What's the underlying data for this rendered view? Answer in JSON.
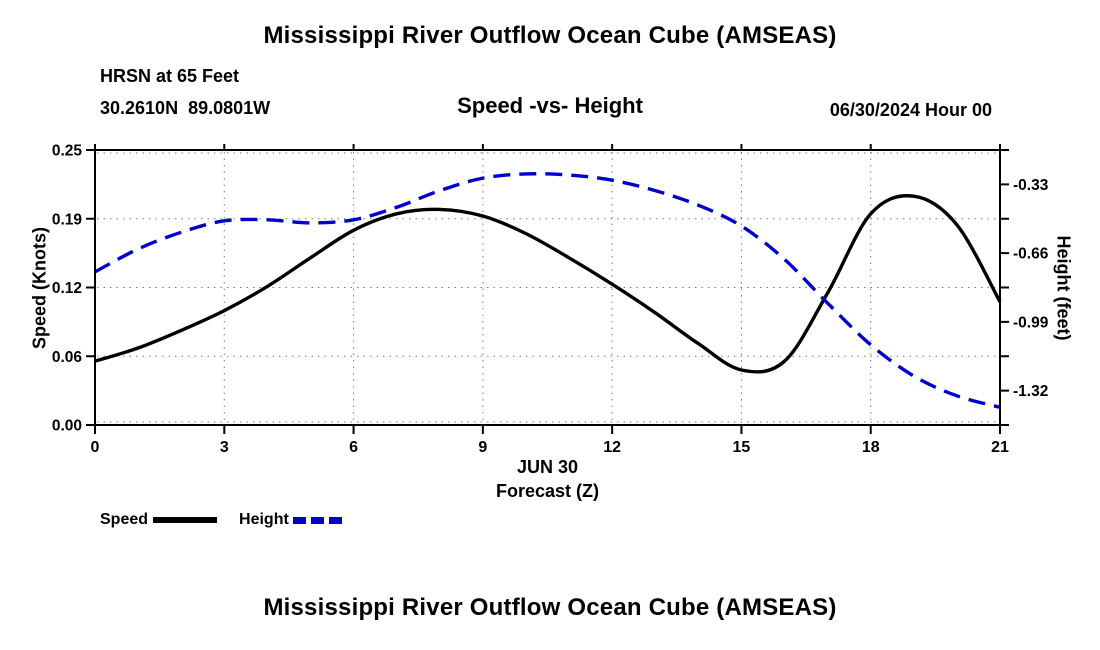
{
  "page": {
    "background": "#ffffff"
  },
  "titles": {
    "top": "Mississippi River Outflow Ocean Cube (AMSEAS)",
    "bottom": "Mississippi River Outflow Ocean Cube (AMSEAS)"
  },
  "header": {
    "station_line": "HRSN at 65 Feet",
    "location_line": "30.2610N  89.0801W",
    "plot_title": "Speed -vs- Height",
    "datetime_label": "06/30/2024 Hour 00"
  },
  "legend": {
    "position": "bottom-left",
    "items": [
      {
        "label": "Speed",
        "color": "#000000",
        "style": "solid"
      },
      {
        "label": "Height",
        "color": "#0000cc",
        "style": "dashed"
      }
    ]
  },
  "colors": {
    "speed_line": "#000000",
    "height_line": "#0000cc",
    "frame": "#000000",
    "grid_dots": "#444444",
    "text": "#000000"
  },
  "chart_data": {
    "type": "line",
    "title": "Speed -vs- Height",
    "grid": "dotted",
    "legend_position": "bottom-left",
    "x_axis": {
      "label_line1": "JUN 30",
      "label_line2": "Forecast (Z)",
      "tick_labels": [
        "0",
        "3",
        "6",
        "9",
        "12",
        "15",
        "18",
        "21"
      ],
      "tick_values": [
        0,
        3,
        6,
        9,
        12,
        15,
        18,
        21
      ],
      "range": [
        0,
        21
      ]
    },
    "left_axis": {
      "label": "Speed (Knots)",
      "tick_labels": [
        "0.25",
        "0.19",
        "0.12",
        "0.06",
        "0.00"
      ],
      "tick_values": [
        0.25,
        0.1875,
        0.125,
        0.0625,
        0
      ],
      "range": [
        0,
        0.25
      ]
    },
    "right_axis": {
      "label": "Height (feet)",
      "tick_labels": [
        "-0.33",
        "-0.66",
        "-0.99",
        "-1.32"
      ],
      "tick_values": [
        -0.33,
        -0.66,
        -0.99,
        -1.32
      ],
      "range": [
        -1.485,
        -0.165
      ]
    },
    "x": [
      0,
      1,
      2,
      3,
      4,
      5,
      6,
      7,
      8,
      9,
      10,
      11,
      12,
      13,
      14,
      15,
      16,
      17,
      18,
      19,
      20,
      21
    ],
    "series": [
      {
        "name": "Speed",
        "axis": "left",
        "color": "#000000",
        "style": "solid",
        "values": [
          0.058,
          0.07,
          0.086,
          0.104,
          0.126,
          0.152,
          0.177,
          0.192,
          0.196,
          0.19,
          0.174,
          0.152,
          0.128,
          0.102,
          0.074,
          0.05,
          0.058,
          0.12,
          0.192,
          0.208,
          0.182,
          0.112
        ]
      },
      {
        "name": "Height",
        "axis": "right",
        "color": "#0000cc",
        "style": "dashed",
        "values": [
          -0.75,
          -0.64,
          -0.56,
          -0.505,
          -0.5,
          -0.515,
          -0.5,
          -0.44,
          -0.36,
          -0.3,
          -0.28,
          -0.285,
          -0.31,
          -0.36,
          -0.43,
          -0.53,
          -0.69,
          -0.9,
          -1.1,
          -1.25,
          -1.345,
          -1.4
        ]
      }
    ]
  }
}
